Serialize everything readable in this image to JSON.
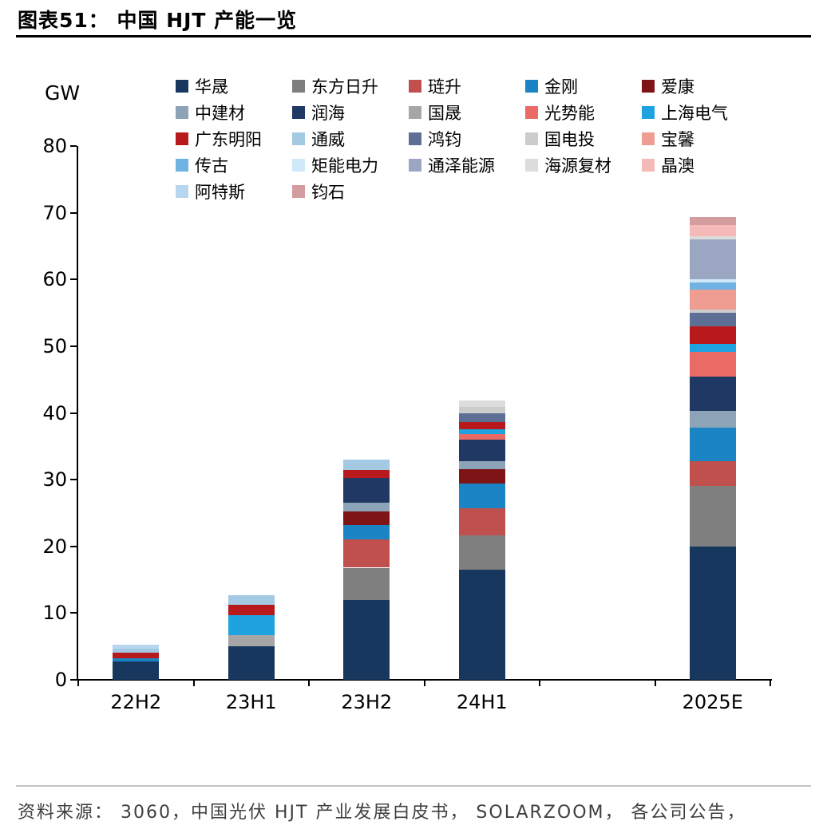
{
  "header": {
    "title": "图表51： 中国 HJT 产能一览"
  },
  "footer": {
    "source": "资料来源： 3060，中国光伏 HJT 产业发展白皮书， SOLARZOOM， 各公司公告，"
  },
  "chart_data": {
    "type": "bar",
    "stacked": true,
    "title": "图表51： 中国 HJT 产能一览",
    "xlabel": "",
    "ylabel": "GW",
    "ylim": [
      0,
      80
    ],
    "ytick_step": 10,
    "grid": false,
    "legend_position": "top",
    "categories": [
      "22H2",
      "23H1",
      "23H2",
      "24H1",
      "",
      "2025E"
    ],
    "totals": [
      5.3,
      12.7,
      33.0,
      41.8,
      0,
      69.3
    ],
    "series": [
      {
        "name": "华晟",
        "color": "#17375E",
        "values": [
          2.7,
          5.0,
          12.0,
          16.5,
          0,
          20.0
        ]
      },
      {
        "name": "东方日升",
        "color": "#7F7F7F",
        "values": [
          0,
          0,
          4.8,
          5.2,
          0,
          9.0
        ]
      },
      {
        "name": "琏升",
        "color": "#C0504D",
        "values": [
          0,
          0,
          4.2,
          4.0,
          0,
          3.8
        ]
      },
      {
        "name": "金刚",
        "color": "#1B84C4",
        "values": [
          0.5,
          0,
          2.2,
          3.7,
          0,
          5.0
        ]
      },
      {
        "name": "爱康",
        "color": "#7E1416",
        "values": [
          0,
          0,
          2.0,
          2.2,
          0,
          0
        ]
      },
      {
        "name": "中建材",
        "color": "#8CA3B8",
        "values": [
          0,
          0,
          1.4,
          1.2,
          0,
          2.5
        ]
      },
      {
        "name": "润海",
        "color": "#1F3864",
        "values": [
          0,
          0,
          3.6,
          3.2,
          0,
          5.2
        ]
      },
      {
        "name": "国晟",
        "color": "#A6A6A6",
        "values": [
          0,
          1.7,
          0,
          0,
          0,
          0
        ]
      },
      {
        "name": "光势能",
        "color": "#EA6B66",
        "values": [
          0,
          0,
          0,
          0.8,
          0,
          3.7
        ]
      },
      {
        "name": "上海电气",
        "color": "#1FA3E0",
        "values": [
          0,
          3.0,
          0,
          0.8,
          0,
          1.1
        ]
      },
      {
        "name": "广东明阳",
        "color": "#B8191C",
        "values": [
          0.9,
          1.5,
          1.2,
          1.0,
          0,
          2.7
        ]
      },
      {
        "name": "通威",
        "color": "#A3C9E3",
        "values": [
          0.6,
          1.5,
          1.6,
          0,
          0,
          0
        ]
      },
      {
        "name": "鸿钧",
        "color": "#5E6F96",
        "values": [
          0,
          0,
          0,
          1.3,
          0,
          2.0
        ]
      },
      {
        "name": "国电投",
        "color": "#CCCCCC",
        "values": [
          0,
          0,
          0,
          1.0,
          0,
          0.5
        ]
      },
      {
        "name": "宝馨",
        "color": "#EF9C93",
        "values": [
          0,
          0,
          0,
          0,
          0,
          3.0
        ]
      },
      {
        "name": "传古",
        "color": "#70B2E2",
        "values": [
          0,
          0,
          0,
          0,
          0,
          1.0
        ]
      },
      {
        "name": "矩能电力",
        "color": "#CFE9F9",
        "values": [
          0,
          0,
          0,
          0,
          0,
          0.5
        ]
      },
      {
        "name": "通泽能源",
        "color": "#9BA7C2",
        "values": [
          0,
          0,
          0,
          0,
          0,
          6.0
        ]
      },
      {
        "name": "海源复材",
        "color": "#DCDCDC",
        "values": [
          0,
          0,
          0,
          0.9,
          0,
          0.5
        ]
      },
      {
        "name": "晶澳",
        "color": "#F5B9B8",
        "values": [
          0,
          0,
          0,
          0,
          0,
          1.7
        ]
      },
      {
        "name": "阿特斯",
        "color": "#B7D6EF",
        "values": [
          0.6,
          0,
          0,
          0,
          0,
          0
        ]
      },
      {
        "name": "钧石",
        "color": "#D39C9E",
        "values": [
          0,
          0,
          0,
          0,
          0,
          1.1
        ]
      }
    ]
  }
}
